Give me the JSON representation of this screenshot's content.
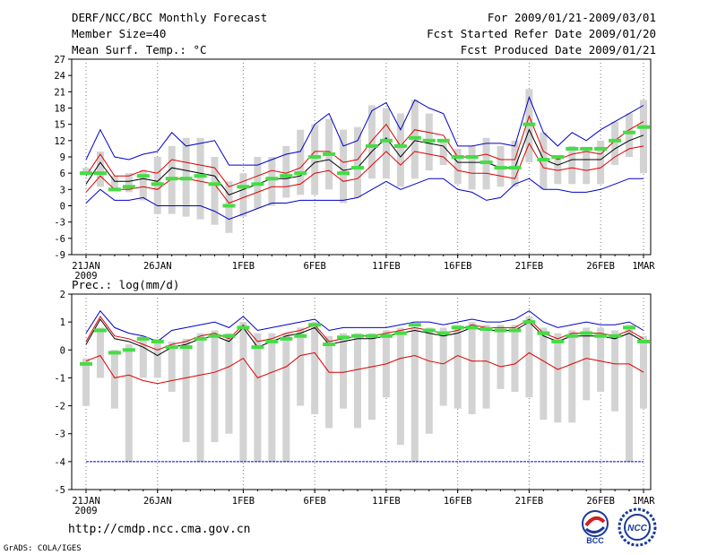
{
  "header": {
    "title": "DERF/NCC/BCC Monthly Forecast",
    "member": "Member Size=40",
    "variable": "Mean Surf. Temp.: °C",
    "period": "For 2009/01/21-2009/03/01",
    "started": "Fcst Started Refer Date 2009/01/20",
    "produced": "Fcst Produced Date 2009/01/21"
  },
  "footer": {
    "url": "http://cmdp.ncc.cma.gov.cn",
    "grads": "GrADS: COLA/IGES",
    "logo_bcc": "BCC",
    "logo_ncc": "NCC"
  },
  "colors": {
    "max": "#0000cc",
    "min": "#0000cc",
    "upper": "#dd0000",
    "lower": "#dd0000",
    "mean": "#000000",
    "box": "#d3d3d3",
    "median": "#44dd44"
  },
  "chart_data": [
    {
      "type": "line",
      "title": "Mean Surf. Temp.: °C",
      "ylim": [
        -9,
        27
      ],
      "yticks": [
        -9,
        -6,
        -3,
        0,
        3,
        6,
        9,
        12,
        15,
        18,
        21,
        24,
        27
      ],
      "xtick_labels": [
        {
          "day": 0,
          "label": "21JAN",
          "sub": "2009"
        },
        {
          "day": 5,
          "label": "26JAN"
        },
        {
          "day": 11,
          "label": "1FEB"
        },
        {
          "day": 16,
          "label": "6FEB"
        },
        {
          "day": 21,
          "label": "11FEB"
        },
        {
          "day": 26,
          "label": "16FEB"
        },
        {
          "day": 31,
          "label": "21FEB"
        },
        {
          "day": 36,
          "label": "26FEB"
        },
        {
          "day": 39,
          "label": "1MAR"
        }
      ],
      "series": [
        {
          "name": "max",
          "values": [
            8.5,
            14,
            9,
            8.5,
            9.5,
            10,
            13.5,
            11,
            11.5,
            12,
            7.5,
            7.5,
            7.5,
            8.5,
            9.5,
            10,
            15,
            17,
            11,
            12,
            17.5,
            19,
            14,
            19.5,
            18,
            17,
            11,
            11,
            11.5,
            11.5,
            11,
            20,
            13.5,
            11,
            13.5,
            12,
            14,
            15.5,
            17,
            18.5
          ]
        },
        {
          "name": "upper",
          "values": [
            5.5,
            9.5,
            5.5,
            5.5,
            6.5,
            6,
            8.5,
            8,
            7.5,
            7,
            3.5,
            4.5,
            5.5,
            6.5,
            6,
            7,
            10,
            10,
            8,
            8.5,
            12,
            15,
            11,
            14,
            13.5,
            13,
            9,
            9,
            9.5,
            8.5,
            8.5,
            16.5,
            10,
            8.5,
            9.5,
            10,
            9.5,
            12,
            14,
            15.5
          ]
        },
        {
          "name": "mean",
          "values": [
            4,
            8,
            4.5,
            4.5,
            5,
            4.5,
            7,
            6.5,
            6,
            5.5,
            2,
            3,
            4,
            5,
            5,
            5.5,
            8,
            8.5,
            6.5,
            7,
            10,
            12.5,
            9,
            12,
            11.5,
            11,
            8,
            8,
            8,
            7,
            7,
            14,
            8.5,
            7.5,
            8.5,
            8.5,
            8.5,
            10.5,
            12,
            13
          ]
        },
        {
          "name": "lower",
          "values": [
            2.5,
            5.5,
            3,
            3,
            3.5,
            3,
            5,
            5,
            4.5,
            4,
            0.5,
            1.5,
            2.5,
            3.5,
            3.5,
            4,
            6,
            6.5,
            4.5,
            5,
            7.5,
            10,
            7.5,
            10,
            9.5,
            9,
            6.5,
            6,
            6,
            5.5,
            5,
            11.5,
            7,
            6.5,
            7,
            6.5,
            7,
            9,
            10.5,
            11
          ]
        },
        {
          "name": "min",
          "values": [
            0.5,
            3,
            1,
            1,
            1.5,
            0,
            0,
            0,
            0,
            -1,
            -2.5,
            -1.5,
            -0.5,
            0.5,
            0.5,
            1,
            1,
            1,
            1,
            1.5,
            3,
            4.5,
            3,
            4,
            5,
            5,
            3,
            2.5,
            1,
            1.5,
            4,
            5,
            3,
            3,
            2.5,
            2.5,
            3,
            4,
            5,
            5
          ]
        }
      ],
      "boxes_low": [
        6,
        3.5,
        3,
        2.5,
        1,
        -1.5,
        -1.5,
        -2,
        -2.5,
        -3.5,
        -5,
        -2,
        -0.5,
        0,
        1.5,
        2,
        2,
        3,
        0.5,
        1.5,
        5,
        5,
        3.5,
        5,
        6.5,
        7.5,
        4,
        3,
        3,
        3.5,
        3.5,
        8,
        3,
        4,
        4,
        4,
        4,
        7.5,
        9,
        6
      ],
      "boxes_high": [
        7,
        10,
        5.5,
        6,
        6.5,
        9,
        11,
        12.5,
        12.5,
        9,
        4.5,
        6,
        9,
        9,
        11,
        14,
        15,
        16,
        14,
        14.5,
        18.5,
        18,
        17,
        19.5,
        17,
        12,
        10.5,
        11,
        12.5,
        11,
        12,
        21.5,
        13.5,
        9,
        11,
        10.5,
        12,
        15.5,
        17,
        19.5
      ],
      "medians": [
        6,
        6,
        3,
        3.5,
        5.5,
        4,
        5,
        5,
        5.5,
        4,
        0,
        3.5,
        4,
        5,
        5.5,
        6,
        9,
        9.5,
        6,
        7,
        11,
        12,
        11,
        12.5,
        12,
        12,
        9,
        9,
        8,
        7,
        7,
        15,
        8.5,
        9,
        10.5,
        10.5,
        10.5,
        12,
        13.5,
        14.5
      ]
    },
    {
      "type": "line",
      "title": "Prec.: log(mm/d)",
      "ylim": [
        -5,
        2
      ],
      "yticks": [
        -5,
        -4,
        -3,
        -2,
        -1,
        0,
        1,
        2
      ],
      "xtick_labels": [
        {
          "day": 0,
          "label": "21JAN",
          "sub": "2009"
        },
        {
          "day": 5,
          "label": "26JAN"
        },
        {
          "day": 11,
          "label": "1FEB"
        },
        {
          "day": 16,
          "label": "6FEB"
        },
        {
          "day": 21,
          "label": "11FEB"
        },
        {
          "day": 26,
          "label": "16FEB"
        },
        {
          "day": 31,
          "label": "21FEB"
        },
        {
          "day": 36,
          "label": "26FEB"
        },
        {
          "day": 39,
          "label": "1MAR"
        }
      ],
      "series": [
        {
          "name": "max",
          "values": [
            0.6,
            1.4,
            0.8,
            0.6,
            0.5,
            0.3,
            0.7,
            0.8,
            0.9,
            1,
            0.8,
            1.2,
            0.7,
            0.8,
            0.9,
            1,
            1.1,
            0.7,
            0.8,
            0.8,
            0.8,
            0.8,
            0.9,
            1,
            1,
            0.9,
            1,
            1.1,
            1,
            1,
            1.1,
            1.4,
            1,
            0.8,
            0.9,
            1,
            0.9,
            0.9,
            1,
            0.7
          ]
        },
        {
          "name": "upper",
          "values": [
            0.3,
            1.2,
            0.5,
            0.4,
            0.2,
            0,
            0.2,
            0.3,
            0.5,
            0.6,
            0.4,
            0.9,
            0.3,
            0.4,
            0.6,
            0.7,
            0.9,
            0.3,
            0.4,
            0.5,
            0.5,
            0.6,
            0.7,
            0.8,
            0.7,
            0.6,
            0.7,
            0.9,
            0.8,
            0.8,
            0.8,
            1.1,
            0.6,
            0.4,
            0.6,
            0.6,
            0.6,
            0.5,
            0.7,
            0.4
          ]
        },
        {
          "name": "mean",
          "values": [
            0.2,
            1.1,
            0.4,
            0.3,
            0.1,
            -0.2,
            0.1,
            0.2,
            0.4,
            0.5,
            0.3,
            0.8,
            0.1,
            0.3,
            0.5,
            0.6,
            0.8,
            0.2,
            0.3,
            0.4,
            0.4,
            0.5,
            0.6,
            0.7,
            0.6,
            0.5,
            0.6,
            0.8,
            0.7,
            0.7,
            0.7,
            1,
            0.5,
            0.3,
            0.5,
            0.5,
            0.5,
            0.4,
            0.6,
            0.3
          ]
        },
        {
          "name": "lower",
          "values": [
            -0.4,
            -0.2,
            -1,
            -0.9,
            -1.1,
            -1.2,
            -1.1,
            -1,
            -0.9,
            -0.8,
            -0.6,
            -0.3,
            -1,
            -0.8,
            -0.6,
            -0.2,
            -0.1,
            -0.8,
            -0.8,
            -0.7,
            -0.6,
            -0.5,
            -0.3,
            -0.2,
            -0.4,
            -0.5,
            -0.2,
            -0.4,
            -0.4,
            -0.6,
            -0.5,
            -0.1,
            -0.4,
            -0.7,
            -0.5,
            -0.3,
            -0.4,
            -0.5,
            -0.5,
            -0.8
          ]
        },
        {
          "name": "min",
          "values": [
            -4,
            -4,
            -4,
            -4,
            -4,
            -4,
            -4,
            -4,
            -4,
            -4,
            -4,
            -4,
            -4,
            -4,
            -4,
            -4,
            -4,
            -4,
            -4,
            -4,
            -4,
            -4,
            -4,
            -4,
            -4,
            -4,
            -4,
            -4,
            -4,
            -4,
            -4,
            -4,
            -4,
            -4,
            -4,
            -4,
            -4,
            -4,
            -4,
            -4
          ]
        }
      ],
      "boxes_low": [
        -2,
        -1,
        -2.1,
        -4,
        -1,
        -1,
        -1.5,
        -3.3,
        -4,
        -3.3,
        -3,
        -4,
        -4,
        -4,
        -4,
        -2,
        -2.3,
        -2.8,
        -2.1,
        -2.8,
        -2.5,
        -1.7,
        -3.4,
        -4,
        -3,
        -2,
        -2.1,
        -2.3,
        -2.1,
        -1.4,
        -1.5,
        -1.7,
        -2.5,
        -2.6,
        -2.6,
        -1.8,
        -1.5,
        -2.2,
        -4,
        -2.1
      ],
      "boxes_high": [
        -0.3,
        0.8,
        0,
        0.2,
        0.5,
        0.4,
        0.3,
        0.4,
        0.6,
        0.7,
        0.6,
        1,
        0.6,
        0.6,
        0.6,
        0.8,
        1,
        0.5,
        0.6,
        0.6,
        0.6,
        0.7,
        0.8,
        0.8,
        0.8,
        0.8,
        0.9,
        1,
        0.9,
        0.9,
        0.9,
        1.2,
        0.8,
        0.6,
        0.7,
        0.8,
        0.8,
        0.7,
        0.9,
        0.5
      ],
      "medians": [
        -0.5,
        0.7,
        -0.1,
        0,
        0.4,
        0.3,
        0.1,
        0.1,
        0.4,
        0.5,
        0.5,
        0.8,
        0.1,
        0.3,
        0.4,
        0.5,
        0.9,
        0.2,
        0.45,
        0.5,
        0.5,
        0.5,
        0.6,
        0.9,
        0.7,
        0.6,
        0.8,
        0.8,
        0.75,
        0.7,
        0.7,
        1,
        0.6,
        0.3,
        0.5,
        0.6,
        0.5,
        0.5,
        0.8,
        0.3
      ]
    }
  ]
}
